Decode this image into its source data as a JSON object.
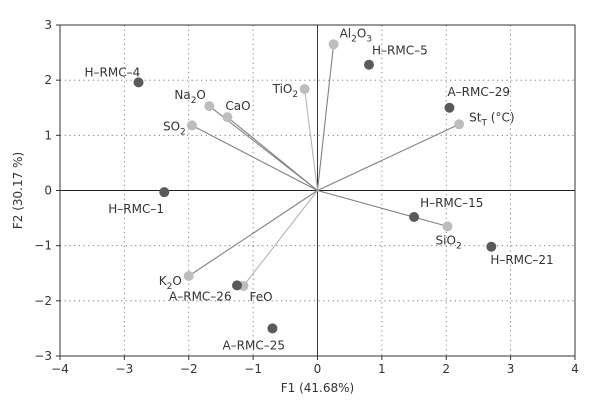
{
  "chart_data": {
    "type": "scatter",
    "xlabel": "F1 (41.68%)",
    "ylabel": "F2 (30.17 %)",
    "xlim": [
      -4,
      4
    ],
    "ylim": [
      -3,
      3
    ],
    "xticks": [
      -4,
      -3,
      -2,
      -1,
      0,
      1,
      2,
      3,
      4
    ],
    "yticks": [
      -3,
      -2,
      -1,
      0,
      1,
      2,
      3
    ],
    "grid": true,
    "colors": {
      "samples": "#5a5a5a",
      "variables": "#bdbdbd",
      "vectors": "#808080",
      "vectors_light": "#b5b5b5"
    },
    "samples": [
      {
        "label": "H–RMC–4",
        "x": -2.78,
        "y": 1.96
      },
      {
        "label": "H–RMC–5",
        "x": 0.8,
        "y": 2.28
      },
      {
        "label": "A–RMC–29",
        "x": 2.05,
        "y": 1.5
      },
      {
        "label": "H–RMC–1",
        "x": -2.38,
        "y": -0.03
      },
      {
        "label": "H–RMC–15",
        "x": 1.5,
        "y": -0.48
      },
      {
        "label": "H–RMC–21",
        "x": 2.7,
        "y": -1.02
      },
      {
        "label": "A–RMC–26",
        "x": -1.25,
        "y": -1.72
      },
      {
        "label": "A–RMC–25",
        "x": -0.7,
        "y": -2.5
      }
    ],
    "variables": [
      {
        "label": "Al2O3",
        "base": "Al",
        "sub": "2",
        "mid": "O",
        "sub2": "3",
        "tail": "",
        "x": 0.25,
        "y": 2.65,
        "dark": true
      },
      {
        "label": "TiO2",
        "base": "TiO",
        "sub": "2",
        "mid": "",
        "sub2": "",
        "tail": "",
        "x": -0.2,
        "y": 1.84,
        "dark": false
      },
      {
        "label": "Na2O",
        "base": "Na",
        "sub": "2",
        "mid": "O",
        "sub2": "",
        "tail": "",
        "x": -1.68,
        "y": 1.53,
        "dark": true
      },
      {
        "label": "CaO",
        "base": "CaO",
        "sub": "",
        "mid": "",
        "sub2": "",
        "tail": "",
        "x": -1.4,
        "y": 1.33,
        "dark": true
      },
      {
        "label": "SO2",
        "base": "SO",
        "sub": "2",
        "mid": "",
        "sub2": "",
        "tail": "",
        "x": -1.95,
        "y": 1.18,
        "dark": true
      },
      {
        "label": "StT (°C)",
        "base": "St",
        "sub": "T",
        "mid": "",
        "sub2": "",
        "tail": " (°C)",
        "x": 2.2,
        "y": 1.2,
        "dark": true
      },
      {
        "label": "SiO2",
        "base": "SiO",
        "sub": "2",
        "mid": "",
        "sub2": "",
        "tail": "",
        "x": 2.02,
        "y": -0.65,
        "dark": true
      },
      {
        "label": "K2O",
        "base": "K",
        "sub": "2",
        "mid": "O",
        "sub2": "",
        "tail": "",
        "x": -2.0,
        "y": -1.55,
        "dark": true
      },
      {
        "label": "FeO",
        "base": "FeO",
        "sub": "",
        "mid": "",
        "sub2": "",
        "tail": "",
        "x": -1.15,
        "y": -1.73,
        "dark": false
      }
    ]
  }
}
